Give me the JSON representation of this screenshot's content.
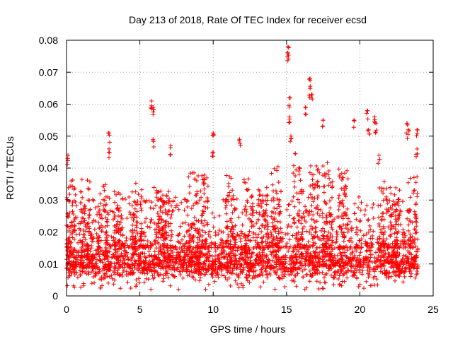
{
  "chart_data": {
    "type": "scatter",
    "title": "Day 213 of 2018, Rate Of TEC Index for receiver ecsd",
    "xlabel": "GPS time / hours",
    "ylabel": "ROTI / TECUs",
    "xlim": [
      0,
      25
    ],
    "ylim": [
      0,
      0.08
    ],
    "x_ticks": [
      0,
      5,
      10,
      15,
      20,
      25
    ],
    "x_tick_labels": [
      "0",
      "5",
      "10",
      "15",
      "20",
      "25"
    ],
    "y_ticks": [
      0,
      0.01,
      0.02,
      0.03,
      0.04,
      0.05,
      0.06,
      0.07,
      0.08
    ],
    "y_tick_labels": [
      "0",
      "0.01",
      "0.02",
      "0.03",
      "0.04",
      "0.05",
      "0.06",
      "0.07",
      "0.08"
    ],
    "grid": true,
    "marker": "+",
    "color": "#ff0000",
    "data_x_range": [
      0,
      24
    ],
    "baseline_band": [
      0.005,
      0.015
    ],
    "notable_points": [
      {
        "x": 0.1,
        "y": 0.044
      },
      {
        "x": 2.9,
        "y": 0.051
      },
      {
        "x": 2.9,
        "y": 0.046
      },
      {
        "x": 5.8,
        "y": 0.061
      },
      {
        "x": 5.9,
        "y": 0.059
      },
      {
        "x": 5.9,
        "y": 0.049
      },
      {
        "x": 7.1,
        "y": 0.047
      },
      {
        "x": 10.0,
        "y": 0.051
      },
      {
        "x": 10.0,
        "y": 0.045
      },
      {
        "x": 11.8,
        "y": 0.049
      },
      {
        "x": 15.1,
        "y": 0.078
      },
      {
        "x": 15.1,
        "y": 0.076
      },
      {
        "x": 15.2,
        "y": 0.062
      },
      {
        "x": 15.2,
        "y": 0.056
      },
      {
        "x": 15.3,
        "y": 0.05
      },
      {
        "x": 16.6,
        "y": 0.068
      },
      {
        "x": 16.6,
        "y": 0.065
      },
      {
        "x": 16.7,
        "y": 0.063
      },
      {
        "x": 16.3,
        "y": 0.059
      },
      {
        "x": 17.5,
        "y": 0.055
      },
      {
        "x": 19.6,
        "y": 0.055
      },
      {
        "x": 20.5,
        "y": 0.058
      },
      {
        "x": 20.6,
        "y": 0.052
      },
      {
        "x": 21.0,
        "y": 0.056
      },
      {
        "x": 21.1,
        "y": 0.054
      },
      {
        "x": 21.3,
        "y": 0.044
      },
      {
        "x": 23.2,
        "y": 0.054
      },
      {
        "x": 23.3,
        "y": 0.052
      },
      {
        "x": 23.9,
        "y": 0.052
      },
      {
        "x": 23.9,
        "y": 0.046
      }
    ],
    "peak_clusters": [
      {
        "x": 0.3,
        "ymax": 0.04
      },
      {
        "x": 1.3,
        "ymax": 0.037
      },
      {
        "x": 2.5,
        "ymax": 0.035
      },
      {
        "x": 3.5,
        "ymax": 0.033
      },
      {
        "x": 4.8,
        "ymax": 0.036
      },
      {
        "x": 6.3,
        "ymax": 0.034
      },
      {
        "x": 6.8,
        "ymax": 0.033
      },
      {
        "x": 8.6,
        "ymax": 0.039
      },
      {
        "x": 9.3,
        "ymax": 0.038
      },
      {
        "x": 11.2,
        "ymax": 0.038
      },
      {
        "x": 12.4,
        "ymax": 0.037
      },
      {
        "x": 13.4,
        "ymax": 0.034
      },
      {
        "x": 14.3,
        "ymax": 0.041
      },
      {
        "x": 15.8,
        "ymax": 0.045
      },
      {
        "x": 16.9,
        "ymax": 0.041
      },
      {
        "x": 17.8,
        "ymax": 0.042
      },
      {
        "x": 18.9,
        "ymax": 0.04
      },
      {
        "x": 21.6,
        "ymax": 0.036
      },
      {
        "x": 22.4,
        "ymax": 0.034
      },
      {
        "x": 23.6,
        "ymax": 0.039
      }
    ]
  }
}
